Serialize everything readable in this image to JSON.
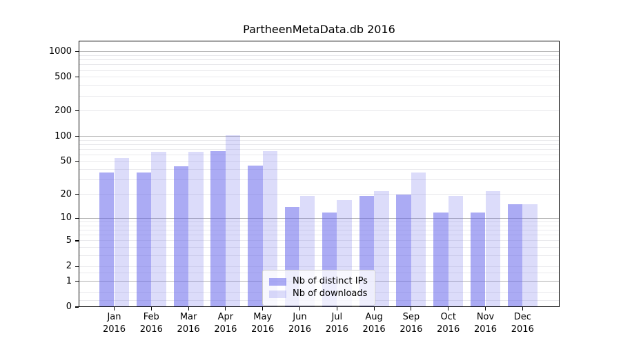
{
  "chart_data": {
    "type": "bar",
    "title": "PartheenMetaData.db 2016",
    "categories": [
      "Jan 2016",
      "Feb 2016",
      "Mar 2016",
      "Apr 2016",
      "May 2016",
      "Jun 2016",
      "Jul 2016",
      "Aug 2016",
      "Sep 2016",
      "Oct 2016",
      "Nov 2016",
      "Dec 2016"
    ],
    "series": [
      {
        "name": "Nb of distinct IPs",
        "color": "rgba(102,102,235,0.55)",
        "values": [
          37,
          37,
          44,
          67,
          45,
          14,
          12,
          19,
          20,
          12,
          12,
          15
        ]
      },
      {
        "name": "Nb of downloads",
        "color": "rgba(102,102,235,0.23)",
        "values": [
          55,
          65,
          65,
          103,
          67,
          19,
          17,
          22,
          37,
          19,
          22,
          15
        ]
      }
    ],
    "xlabel": "",
    "ylabel": "",
    "yscale": "log1p",
    "ylim": [
      0,
      1340
    ],
    "y_ticks": [
      1000,
      500,
      200,
      100,
      50,
      20,
      10,
      5,
      2,
      1,
      0
    ],
    "y_major_gridlines": [
      1,
      10,
      100,
      1000
    ],
    "y_minor_gridlines": [
      0.2,
      0.5,
      1.5,
      2,
      3,
      4,
      5,
      6,
      7,
      8,
      9,
      20,
      30,
      40,
      50,
      60,
      70,
      80,
      90,
      200,
      300,
      400,
      500,
      600,
      700,
      800,
      900
    ],
    "grid": true,
    "legend_position": "lower center",
    "colors": {
      "bar_distinct_ips": "#a7a7f3",
      "bar_downloads": "#dcdcf9",
      "major_gridline": "#b0b0b0",
      "minor_gridline": "#e9e9ec",
      "axis": "#000000",
      "text": "#000000"
    }
  }
}
